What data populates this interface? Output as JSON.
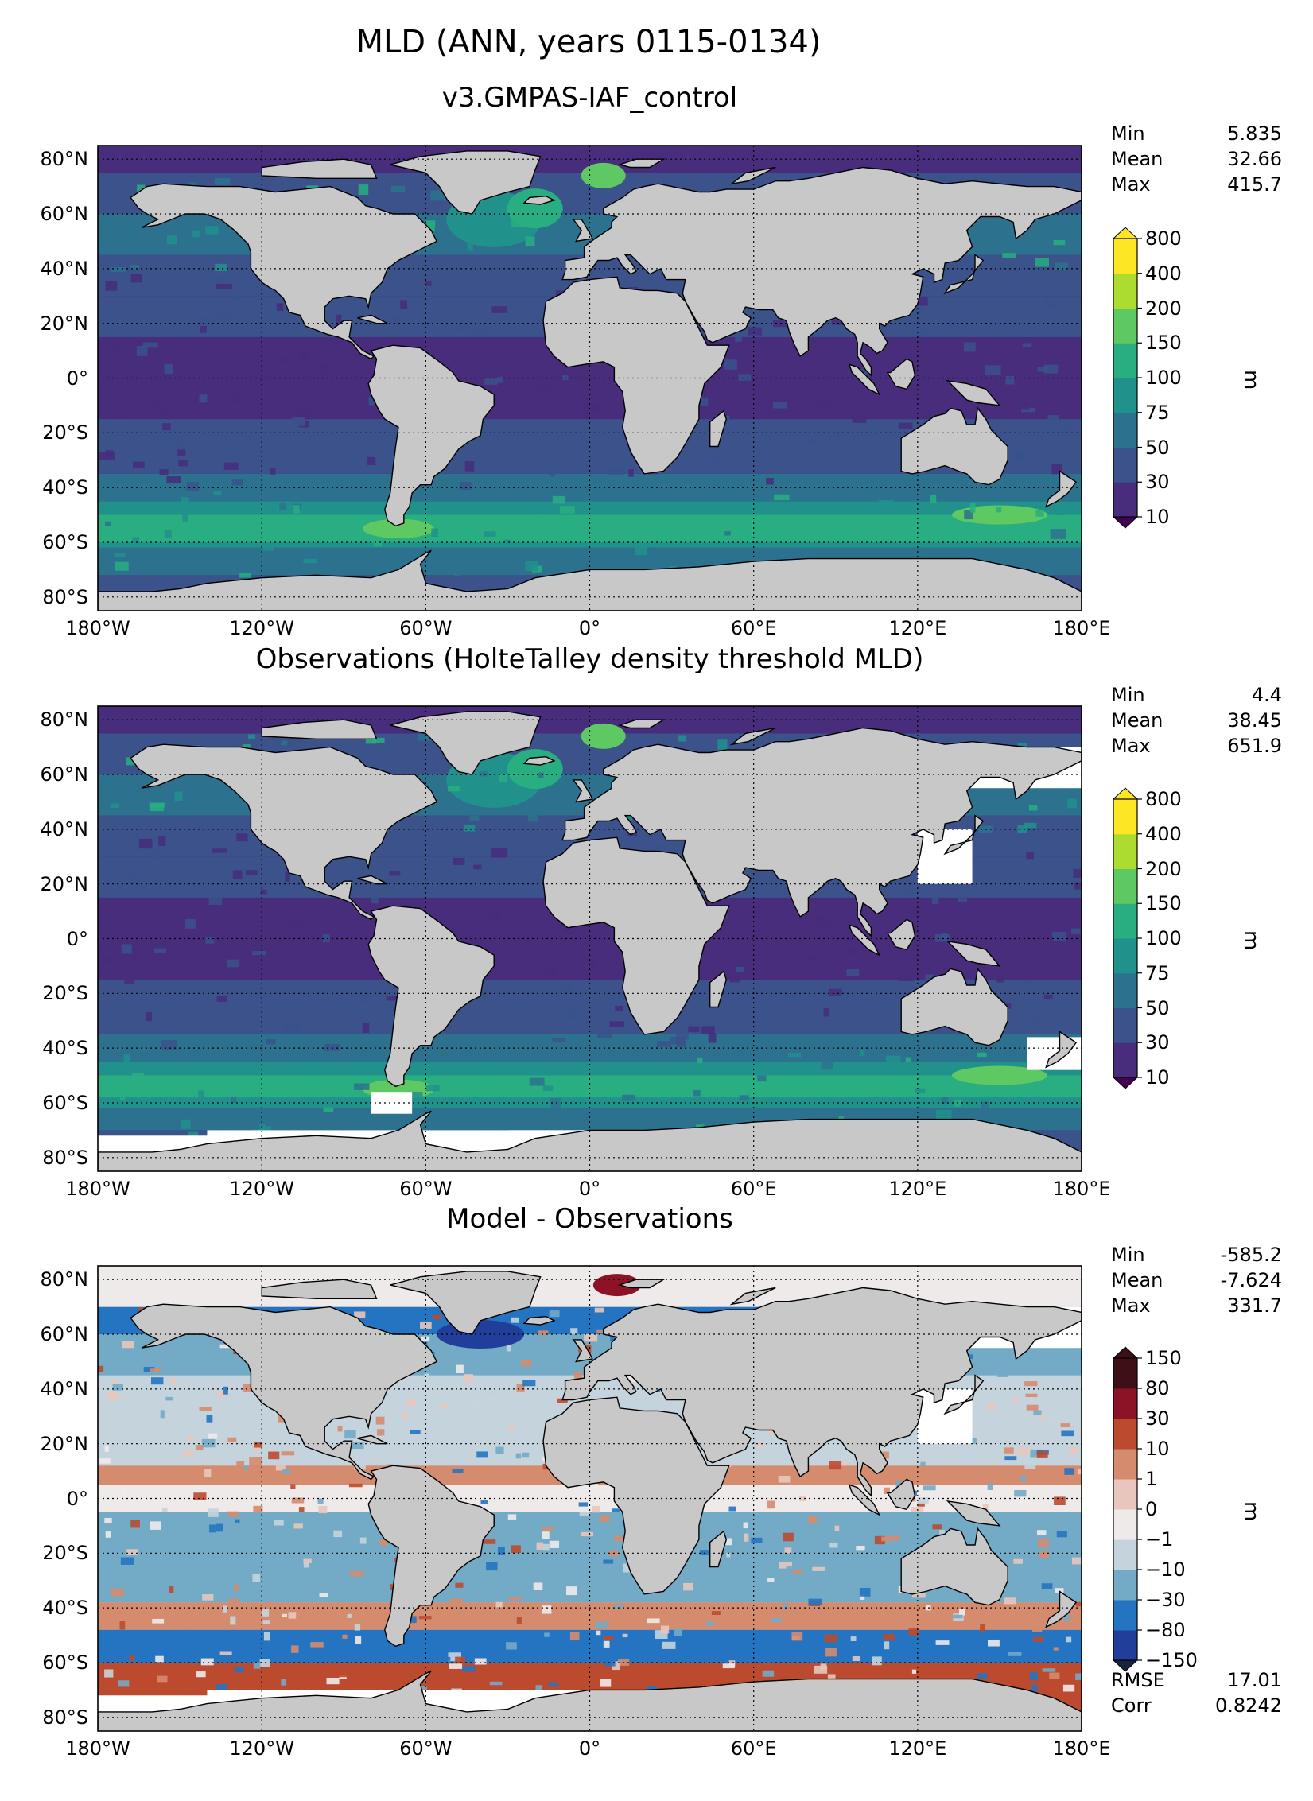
{
  "suptitle": "MLD (ANN, years 0115-0134)",
  "colors": {
    "land": "#c8c8c8",
    "nodata": "#ffffff",
    "viridis": [
      "#440154",
      "#472d7b",
      "#3b528b",
      "#2c728e",
      "#21918c",
      "#28ae80",
      "#5ec962",
      "#addc30",
      "#fde725"
    ],
    "diverging": [
      "#18233f",
      "#213f9a",
      "#2474c1",
      "#73aac6",
      "#c5d4dc",
      "#efeaea",
      "#e8c6bd",
      "#d58b6e",
      "#bc4a2f",
      "#8c1326",
      "#3d1017"
    ]
  },
  "chart_data": [
    {
      "type": "heatmap",
      "title": "v3.GMPAS-IAF_control",
      "stats": [
        {
          "label": "Min",
          "value": "5.835"
        },
        {
          "label": "Mean",
          "value": "32.66"
        },
        {
          "label": "Max",
          "value": "415.7"
        }
      ],
      "xlim": [
        -180,
        180
      ],
      "ylim": [
        -85,
        85
      ],
      "x_ticks": [
        "180°W",
        "120°W",
        "60°W",
        "0°",
        "60°E",
        "120°E",
        "180°E"
      ],
      "y_ticks": [
        "80°N",
        "60°N",
        "40°N",
        "20°N",
        "0°",
        "20°S",
        "40°S",
        "60°S",
        "80°S"
      ],
      "colorbar": {
        "ticks": [
          "800",
          "400",
          "200",
          "150",
          "100",
          "75",
          "50",
          "30",
          "10"
        ],
        "label": "m",
        "palette": "viridis"
      }
    },
    {
      "type": "heatmap",
      "title": "Observations (HolteTalley density threshold MLD)",
      "stats": [
        {
          "label": "Min",
          "value": "4.4"
        },
        {
          "label": "Mean",
          "value": "38.45"
        },
        {
          "label": "Max",
          "value": "651.9"
        }
      ],
      "xlim": [
        -180,
        180
      ],
      "ylim": [
        -85,
        85
      ],
      "x_ticks": [
        "180°W",
        "120°W",
        "60°W",
        "0°",
        "60°E",
        "120°E",
        "180°E"
      ],
      "y_ticks": [
        "80°N",
        "60°N",
        "40°N",
        "20°N",
        "0°",
        "20°S",
        "40°S",
        "60°S",
        "80°S"
      ],
      "colorbar": {
        "ticks": [
          "800",
          "400",
          "200",
          "150",
          "100",
          "75",
          "50",
          "30",
          "10"
        ],
        "label": "m",
        "palette": "viridis"
      }
    },
    {
      "type": "heatmap",
      "title": "Model - Observations",
      "stats": [
        {
          "label": "Min",
          "value": "-585.2"
        },
        {
          "label": "Mean",
          "value": "-7.624"
        },
        {
          "label": "Max",
          "value": "331.7"
        }
      ],
      "extra_stats": [
        {
          "label": "RMSE",
          "value": "17.01"
        },
        {
          "label": "Corr",
          "value": "0.8242"
        }
      ],
      "xlim": [
        -180,
        180
      ],
      "ylim": [
        -85,
        85
      ],
      "x_ticks": [
        "180°W",
        "120°W",
        "60°W",
        "0°",
        "60°E",
        "120°E",
        "180°E"
      ],
      "y_ticks": [
        "80°N",
        "60°N",
        "40°N",
        "20°N",
        "0°",
        "20°S",
        "40°S",
        "60°S",
        "80°S"
      ],
      "colorbar": {
        "ticks": [
          "150",
          "80",
          "30",
          "10",
          "1",
          "0",
          "−1",
          "−10",
          "−30",
          "−80",
          "−150"
        ],
        "label": "m",
        "palette": "diverging"
      }
    }
  ]
}
